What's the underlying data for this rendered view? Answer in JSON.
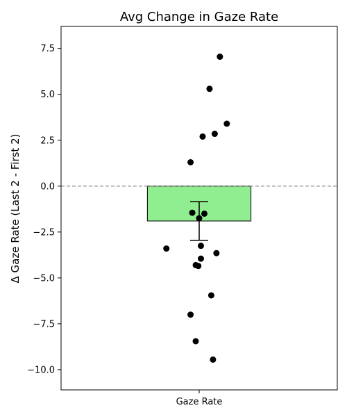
{
  "chart_data": {
    "type": "bar",
    "title": "Avg Change in Gaze Rate",
    "xlabel": "",
    "ylabel": "Δ Gaze Rate (Last 2 - First 2)",
    "categories": [
      "Gaze Rate"
    ],
    "values": [
      -1.9
    ],
    "error": [
      1.05
    ],
    "ylim": [
      -11.1,
      8.7
    ],
    "yticks": [
      -10.0,
      -7.5,
      -5.0,
      -2.5,
      0.0,
      2.5,
      5.0,
      7.5
    ],
    "ytick_labels": [
      "−10.0",
      "−7.5",
      "−5.0",
      "−2.5",
      "0.0",
      "2.5",
      "5.0",
      "7.5"
    ],
    "reference_line": {
      "y": 0.0,
      "style": "dashed",
      "color": "#808080"
    },
    "bar_color": "#90ee90",
    "point_color": "#000000",
    "points": [
      {
        "x": 0.12,
        "y": 7.05
      },
      {
        "x": 0.06,
        "y": 5.3
      },
      {
        "x": 0.16,
        "y": 3.4
      },
      {
        "x": 0.09,
        "y": 2.85
      },
      {
        "x": 0.02,
        "y": 2.7
      },
      {
        "x": -0.05,
        "y": 1.3
      },
      {
        "x": -0.04,
        "y": -1.45
      },
      {
        "x": 0.03,
        "y": -1.5
      },
      {
        "x": 0.0,
        "y": -1.75
      },
      {
        "x": -0.19,
        "y": -3.4
      },
      {
        "x": 0.01,
        "y": -3.25
      },
      {
        "x": 0.1,
        "y": -3.65
      },
      {
        "x": 0.01,
        "y": -3.95
      },
      {
        "x": -0.02,
        "y": -4.3
      },
      {
        "x": -0.005,
        "y": -4.35
      },
      {
        "x": 0.07,
        "y": -5.95
      },
      {
        "x": -0.05,
        "y": -7.0
      },
      {
        "x": -0.02,
        "y": -8.45
      },
      {
        "x": 0.08,
        "y": -9.45
      }
    ],
    "xlim": [
      -0.8,
      0.8
    ],
    "bar_width": 0.6,
    "grid": false,
    "legend": "none"
  }
}
